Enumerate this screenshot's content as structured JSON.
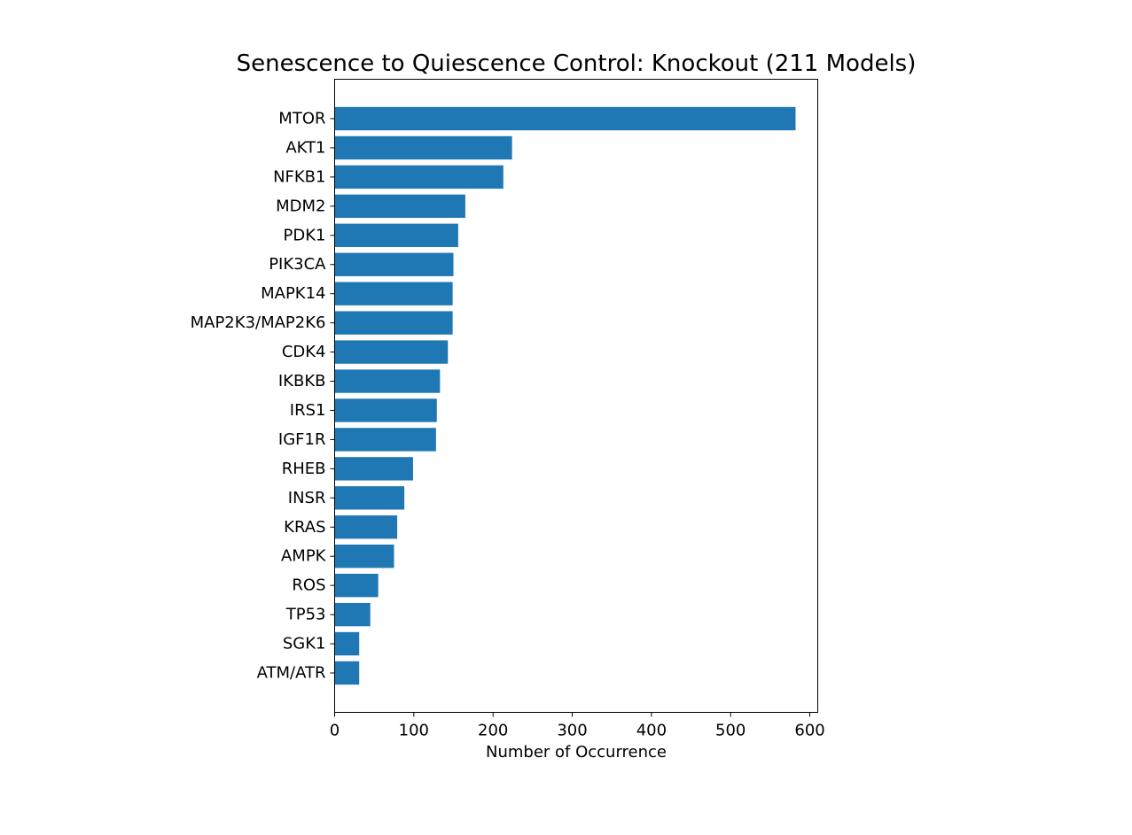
{
  "chart_data": {
    "type": "bar",
    "orientation": "horizontal",
    "title": "Senescence to Quiescence Control: Knockout (211 Models)",
    "xlabel": "Number of Occurrence",
    "ylabel": "",
    "categories": [
      "MTOR",
      "AKT1",
      "NFKB1",
      "MDM2",
      "PDK1",
      "PIK3CA",
      "MAPK14",
      "MAP2K3/MAP2K6",
      "CDK4",
      "IKBKB",
      "IRS1",
      "IGF1R",
      "RHEB",
      "INSR",
      "KRAS",
      "AMPK",
      "ROS",
      "TP53",
      "SGK1",
      "ATM/ATR"
    ],
    "values": [
      582,
      224,
      213,
      165,
      156,
      150,
      149,
      149,
      143,
      133,
      129,
      128,
      99,
      88,
      79,
      75,
      55,
      45,
      31,
      31
    ],
    "xlim": [
      0,
      610
    ],
    "xticks": [
      0,
      100,
      200,
      300,
      400,
      500,
      600
    ],
    "grid": false,
    "legend": "none",
    "bar_color": "#1f77b4"
  }
}
